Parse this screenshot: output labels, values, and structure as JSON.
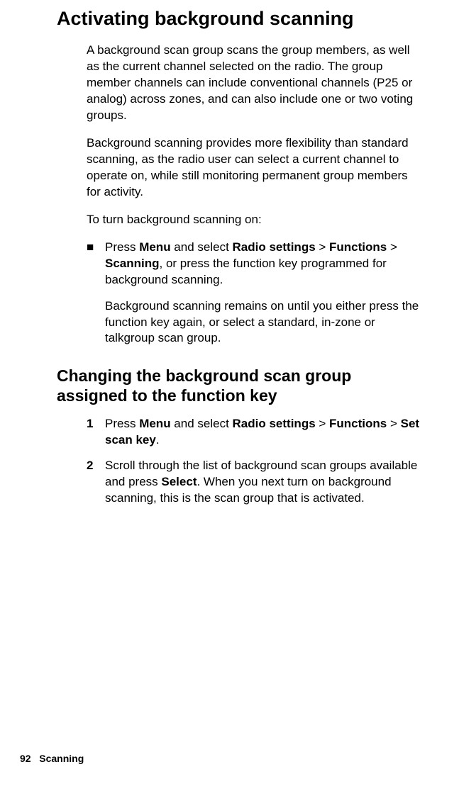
{
  "section1": {
    "title": "Activating background scanning",
    "para1": "A background scan group scans the group members, as well as the current channel selected on the radio. The group member channels can include conventional channels (P25 or analog) across zones, and can also include one or two voting groups.",
    "para2": "Background scanning provides more flexibility than standard scanning, as the radio user can select a current channel to operate on, while still monitoring permanent group members for activity.",
    "para3": "To turn background scanning on:",
    "bullet": {
      "pre": "Press ",
      "b1": "Menu",
      "mid1": " and select ",
      "b2": "Radio settings",
      "gt1": " > ",
      "b3": "Functions",
      "gt2": " > ",
      "b4": "Scanning",
      "post": ", or press the function key programmed for background scanning."
    },
    "bullet_cont": "Background scanning remains on until you either press the function key again, or select a standard, in-zone or talkgroup scan group."
  },
  "section2": {
    "title": "Changing the background scan group assigned to the function key",
    "step1": {
      "num": "1",
      "pre": "Press ",
      "b1": "Menu",
      "mid1": " and select ",
      "b2": "Radio settings",
      "gt1": " > ",
      "b3": "Functions",
      "gt2": " > ",
      "b4": "Set scan key",
      "post": "."
    },
    "step2": {
      "num": "2",
      "pre": "Scroll through the list of background scan groups available and press ",
      "b1": "Select",
      "post": ". When you next turn on background scanning, this is the scan group that is activated."
    }
  },
  "footer": {
    "page_num": "92",
    "section": "Scanning"
  }
}
